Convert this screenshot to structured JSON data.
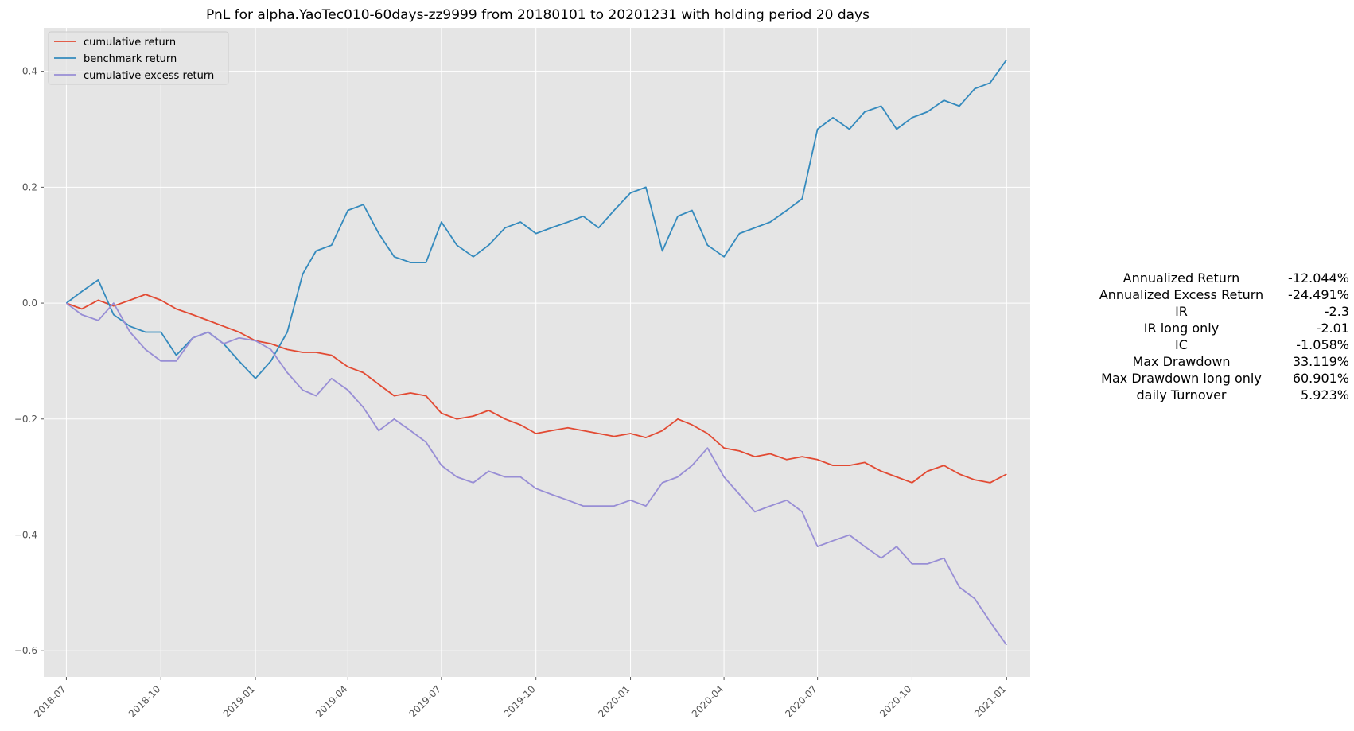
{
  "chart_data": {
    "type": "line",
    "title": "PnL for alpha.YaoTec010-60days-zz9999 from 20180101 to 20201231 with holding period 20 days",
    "xlabel": "",
    "ylabel": "",
    "x_type": "date",
    "xlim": [
      "2018-06-09",
      "2021-01-24"
    ],
    "ylim": [
      -0.645,
      0.475
    ],
    "x_ticks": [
      "2018-07",
      "2018-10",
      "2019-01",
      "2019-04",
      "2019-07",
      "2019-10",
      "2020-01",
      "2020-04",
      "2020-07",
      "2020-10",
      "2021-01"
    ],
    "y_ticks": [
      0.4,
      0.2,
      0.0,
      -0.2,
      -0.4,
      -0.6
    ],
    "y_tick_labels": [
      "0.4",
      "0.2",
      "0.0",
      "−0.2",
      "−0.4",
      "−0.6"
    ],
    "grid": true,
    "legend": "top-left",
    "series": [
      {
        "name": "cumulative return",
        "color": "#E24A33",
        "x": [
          "2018-07-01",
          "2018-07-16",
          "2018-08-01",
          "2018-08-16",
          "2018-09-01",
          "2018-09-16",
          "2018-10-01",
          "2018-10-16",
          "2018-11-01",
          "2018-11-16",
          "2018-12-01",
          "2018-12-16",
          "2019-01-01",
          "2019-01-16",
          "2019-02-01",
          "2019-02-16",
          "2019-03-01",
          "2019-03-16",
          "2019-04-01",
          "2019-04-16",
          "2019-05-01",
          "2019-05-16",
          "2019-06-01",
          "2019-06-16",
          "2019-07-01",
          "2019-07-16",
          "2019-08-01",
          "2019-08-16",
          "2019-09-01",
          "2019-09-16",
          "2019-10-01",
          "2019-10-16",
          "2019-11-01",
          "2019-11-16",
          "2019-12-01",
          "2019-12-16",
          "2020-01-01",
          "2020-01-16",
          "2020-02-01",
          "2020-02-16",
          "2020-03-01",
          "2020-03-16",
          "2020-04-01",
          "2020-04-16",
          "2020-05-01",
          "2020-05-16",
          "2020-06-01",
          "2020-06-16",
          "2020-07-01",
          "2020-07-16",
          "2020-08-01",
          "2020-08-16",
          "2020-09-01",
          "2020-09-16",
          "2020-10-01",
          "2020-10-16",
          "2020-11-01",
          "2020-11-16",
          "2020-12-01",
          "2020-12-16",
          "2021-01-01"
        ],
        "values": [
          0.0,
          -0.01,
          0.005,
          -0.005,
          0.005,
          0.015,
          0.005,
          -0.01,
          -0.02,
          -0.03,
          -0.04,
          -0.05,
          -0.065,
          -0.07,
          -0.08,
          -0.085,
          -0.085,
          -0.09,
          -0.11,
          -0.12,
          -0.14,
          -0.16,
          -0.155,
          -0.16,
          -0.19,
          -0.2,
          -0.195,
          -0.185,
          -0.2,
          -0.21,
          -0.225,
          -0.22,
          -0.215,
          -0.22,
          -0.225,
          -0.23,
          -0.225,
          -0.232,
          -0.22,
          -0.2,
          -0.21,
          -0.225,
          -0.25,
          -0.255,
          -0.265,
          -0.26,
          -0.27,
          -0.265,
          -0.27,
          -0.28,
          -0.28,
          -0.275,
          -0.29,
          -0.3,
          -0.31,
          -0.29,
          -0.28,
          -0.295,
          -0.305,
          -0.31,
          -0.295
        ]
      },
      {
        "name": "benchmark return",
        "color": "#348ABD",
        "x": [
          "2018-07-01",
          "2018-07-16",
          "2018-08-01",
          "2018-08-16",
          "2018-09-01",
          "2018-09-16",
          "2018-10-01",
          "2018-10-16",
          "2018-11-01",
          "2018-11-16",
          "2018-12-01",
          "2018-12-16",
          "2019-01-01",
          "2019-01-16",
          "2019-02-01",
          "2019-02-16",
          "2019-03-01",
          "2019-03-16",
          "2019-04-01",
          "2019-04-16",
          "2019-05-01",
          "2019-05-16",
          "2019-06-01",
          "2019-06-16",
          "2019-07-01",
          "2019-07-16",
          "2019-08-01",
          "2019-08-16",
          "2019-09-01",
          "2019-09-16",
          "2019-10-01",
          "2019-10-16",
          "2019-11-01",
          "2019-11-16",
          "2019-12-01",
          "2019-12-16",
          "2020-01-01",
          "2020-01-16",
          "2020-02-01",
          "2020-02-16",
          "2020-03-01",
          "2020-03-16",
          "2020-04-01",
          "2020-04-16",
          "2020-05-01",
          "2020-05-16",
          "2020-06-01",
          "2020-06-16",
          "2020-07-01",
          "2020-07-16",
          "2020-08-01",
          "2020-08-16",
          "2020-09-01",
          "2020-09-16",
          "2020-10-01",
          "2020-10-16",
          "2020-11-01",
          "2020-11-16",
          "2020-12-01",
          "2020-12-16",
          "2021-01-01"
        ],
        "values": [
          0.0,
          0.02,
          0.04,
          -0.02,
          -0.04,
          -0.05,
          -0.05,
          -0.09,
          -0.06,
          -0.05,
          -0.07,
          -0.1,
          -0.13,
          -0.1,
          -0.05,
          0.05,
          0.09,
          0.1,
          0.16,
          0.17,
          0.12,
          0.08,
          0.07,
          0.07,
          0.14,
          0.1,
          0.08,
          0.1,
          0.13,
          0.14,
          0.12,
          0.13,
          0.14,
          0.15,
          0.13,
          0.16,
          0.19,
          0.2,
          0.09,
          0.15,
          0.16,
          0.1,
          0.08,
          0.12,
          0.13,
          0.14,
          0.16,
          0.18,
          0.3,
          0.32,
          0.3,
          0.33,
          0.34,
          0.3,
          0.32,
          0.33,
          0.35,
          0.34,
          0.37,
          0.38,
          0.42
        ]
      },
      {
        "name": "cumulative excess return",
        "color": "#988ED5",
        "x": [
          "2018-07-01",
          "2018-07-16",
          "2018-08-01",
          "2018-08-16",
          "2018-09-01",
          "2018-09-16",
          "2018-10-01",
          "2018-10-16",
          "2018-11-01",
          "2018-11-16",
          "2018-12-01",
          "2018-12-16",
          "2019-01-01",
          "2019-01-16",
          "2019-02-01",
          "2019-02-16",
          "2019-03-01",
          "2019-03-16",
          "2019-04-01",
          "2019-04-16",
          "2019-05-01",
          "2019-05-16",
          "2019-06-01",
          "2019-06-16",
          "2019-07-01",
          "2019-07-16",
          "2019-08-01",
          "2019-08-16",
          "2019-09-01",
          "2019-09-16",
          "2019-10-01",
          "2019-10-16",
          "2019-11-01",
          "2019-11-16",
          "2019-12-01",
          "2019-12-16",
          "2020-01-01",
          "2020-01-16",
          "2020-02-01",
          "2020-02-16",
          "2020-03-01",
          "2020-03-16",
          "2020-04-01",
          "2020-04-16",
          "2020-05-01",
          "2020-05-16",
          "2020-06-01",
          "2020-06-16",
          "2020-07-01",
          "2020-07-16",
          "2020-08-01",
          "2020-08-16",
          "2020-09-01",
          "2020-09-16",
          "2020-10-01",
          "2020-10-16",
          "2020-11-01",
          "2020-11-16",
          "2020-12-01",
          "2020-12-16",
          "2021-01-01"
        ],
        "values": [
          0.0,
          -0.02,
          -0.03,
          0.0,
          -0.05,
          -0.08,
          -0.1,
          -0.1,
          -0.06,
          -0.05,
          -0.07,
          -0.06,
          -0.065,
          -0.08,
          -0.12,
          -0.15,
          -0.16,
          -0.13,
          -0.15,
          -0.18,
          -0.22,
          -0.2,
          -0.22,
          -0.24,
          -0.28,
          -0.3,
          -0.31,
          -0.29,
          -0.3,
          -0.3,
          -0.32,
          -0.33,
          -0.34,
          -0.35,
          -0.35,
          -0.35,
          -0.34,
          -0.35,
          -0.31,
          -0.3,
          -0.28,
          -0.25,
          -0.3,
          -0.33,
          -0.36,
          -0.35,
          -0.34,
          -0.36,
          -0.42,
          -0.41,
          -0.4,
          -0.42,
          -0.44,
          -0.42,
          -0.45,
          -0.45,
          -0.44,
          -0.49,
          -0.51,
          -0.55,
          -0.59
        ]
      }
    ]
  },
  "stats": [
    {
      "label": "Annualized Return",
      "value": "-12.044%"
    },
    {
      "label": "Annualized Excess Return",
      "value": "-24.491%"
    },
    {
      "label": "IR",
      "value": "-2.3"
    },
    {
      "label": "IR long only",
      "value": "-2.01"
    },
    {
      "label": "IC",
      "value": "-1.058%"
    },
    {
      "label": "Max Drawdown",
      "value": "33.119%"
    },
    {
      "label": "Max Drawdown long only",
      "value": "60.901%"
    },
    {
      "label": "daily Turnover",
      "value": "5.923%"
    }
  ],
  "colors": {
    "plot_background": "#E5E5E5",
    "grid": "#FFFFFF"
  }
}
